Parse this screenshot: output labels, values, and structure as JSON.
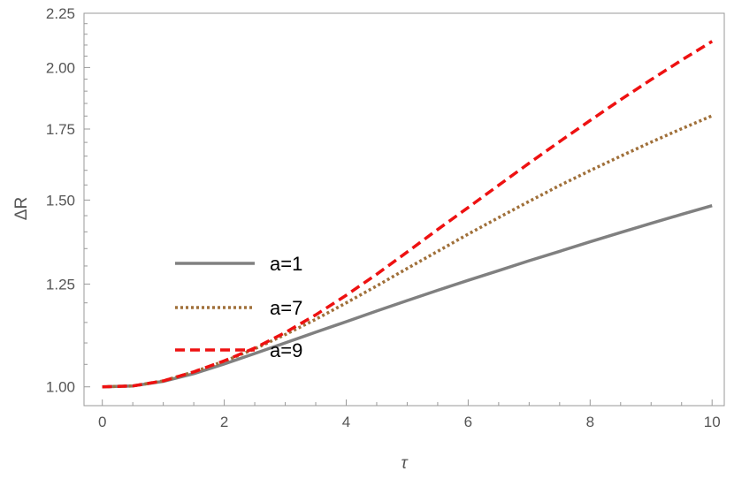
{
  "chart_data": {
    "type": "line",
    "xlabel": "τ",
    "ylabel": "ΔR",
    "xlim": [
      -0.3,
      10.2
    ],
    "ylim": [
      0.96,
      2.25
    ],
    "y_scale": "log",
    "grid": false,
    "legend_placement": "center-left",
    "x_ticks": [
      {
        "value": 0,
        "label": "0"
      },
      {
        "value": 2,
        "label": "2"
      },
      {
        "value": 4,
        "label": "4"
      },
      {
        "value": 6,
        "label": "6"
      },
      {
        "value": 8,
        "label": "8"
      },
      {
        "value": 10,
        "label": "10"
      }
    ],
    "y_ticks": [
      {
        "value": 1.0,
        "label": "1.00"
      },
      {
        "value": 1.25,
        "label": "1.25"
      },
      {
        "value": 1.5,
        "label": "1.50"
      },
      {
        "value": 1.75,
        "label": "1.75"
      },
      {
        "value": 2.0,
        "label": "2.00"
      },
      {
        "value": 2.25,
        "label": "2.25"
      }
    ],
    "x": [
      0,
      0.5,
      1,
      1.5,
      2,
      2.5,
      3,
      3.5,
      4,
      4.5,
      5,
      5.5,
      6,
      6.5,
      7,
      7.5,
      8,
      8.5,
      9,
      9.5,
      10
    ],
    "series": [
      {
        "name": "a=1",
        "color": "#808080",
        "dash": "solid",
        "values": [
          1.0,
          1.002,
          1.012,
          1.029,
          1.051,
          1.075,
          1.1,
          1.126,
          1.152,
          1.179,
          1.206,
          1.233,
          1.26,
          1.287,
          1.315,
          1.342,
          1.37,
          1.398,
          1.426,
          1.454,
          1.482
        ]
      },
      {
        "name": "a=7",
        "color": "#a0703a",
        "dash": "dotted",
        "values": [
          1.0,
          1.002,
          1.013,
          1.033,
          1.057,
          1.086,
          1.12,
          1.158,
          1.2,
          1.245,
          1.293,
          1.342,
          1.393,
          1.444,
          1.496,
          1.548,
          1.599,
          1.65,
          1.701,
          1.751,
          1.801
        ]
      },
      {
        "name": "a=9",
        "color": "#ee1111",
        "dash": "dashed",
        "values": [
          1.0,
          1.002,
          1.013,
          1.033,
          1.058,
          1.088,
          1.125,
          1.169,
          1.22,
          1.277,
          1.34,
          1.407,
          1.476,
          1.549,
          1.625,
          1.703,
          1.783,
          1.865,
          1.948,
          2.032,
          2.117
        ]
      }
    ]
  }
}
